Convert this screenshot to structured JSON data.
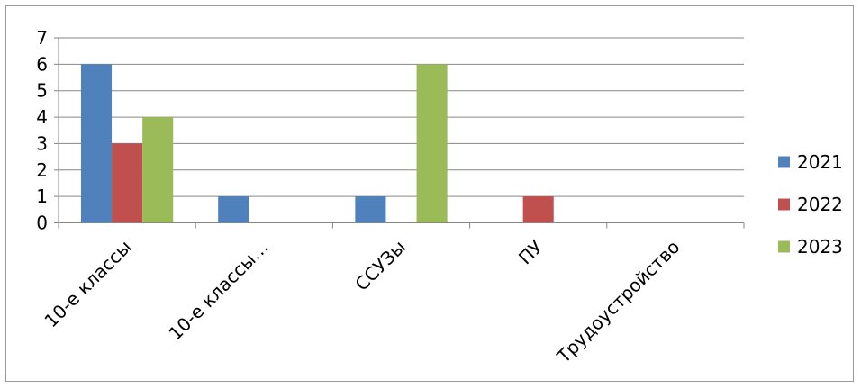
{
  "chart_data": {
    "type": "bar",
    "categories": [
      "10-е классы",
      "10-е классы…",
      "ССУЗы",
      "ПУ",
      "Трудоустройство"
    ],
    "series": [
      {
        "name": "2021",
        "values": [
          6,
          1,
          1,
          0,
          0
        ],
        "color": "#4F81BD"
      },
      {
        "name": "2022",
        "values": [
          3,
          0,
          0,
          1,
          0
        ],
        "color": "#C0504D"
      },
      {
        "name": "2023",
        "values": [
          4,
          0,
          6,
          0,
          0
        ],
        "color": "#9BBB59"
      }
    ],
    "title": "",
    "xlabel": "",
    "ylabel": "",
    "ylim": [
      0,
      7
    ],
    "yticks": [
      "0",
      "1",
      "2",
      "3",
      "4",
      "5",
      "6",
      "7"
    ],
    "grid": true,
    "legend_position": "right"
  }
}
